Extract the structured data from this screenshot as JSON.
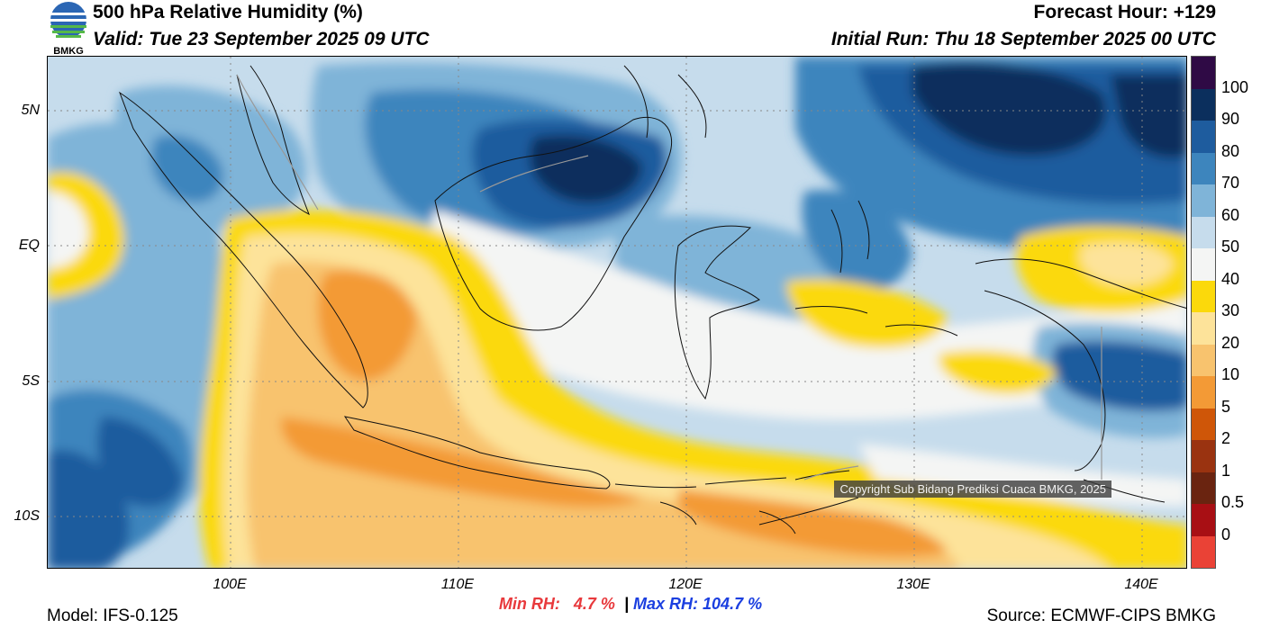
{
  "header": {
    "title": "500 hPa Relative Humidity (%)",
    "valid": "Valid: Tue 23 September 2025 09 UTC",
    "forecast_hour": "Forecast Hour: +129",
    "initial_run": "Initial Run: Thu 18 September 2025 00 UTC",
    "logo_text": "BMKG"
  },
  "map": {
    "lat_labels": [
      "5N",
      "EQ",
      "5S",
      "10S"
    ],
    "lon_labels": [
      "100E",
      "110E",
      "120E",
      "130E",
      "140E"
    ],
    "extent": {
      "lon_min": 92,
      "lon_max": 142,
      "lat_min": -12,
      "lat_max": 7
    }
  },
  "stats": {
    "min_label": "Min RH:",
    "min_value": "4.7 %",
    "separator": "|",
    "max_label": "Max RH:",
    "max_value": "104.7 %"
  },
  "footer": {
    "model": "Model: IFS-0.125",
    "source": "Source: ECMWF-CIPS BMKG",
    "copyright": "Copyright Sub Bidang Prediksi Cuaca BMKG, 2025"
  },
  "colorbar": {
    "labels": [
      "100",
      "90",
      "80",
      "70",
      "60",
      "50",
      "40",
      "30",
      "20",
      "10",
      "5",
      "2",
      "1",
      "0.5",
      "0"
    ],
    "colors": [
      "#2f0a45",
      "#0b2f5d",
      "#1e5c9e",
      "#3d85bd",
      "#7fb4d8",
      "#c6dcec",
      "#f4f5f4",
      "#fbd90b",
      "#fde39a",
      "#f8c36e",
      "#f39a36",
      "#cf5608",
      "#9a3310",
      "#6a2410",
      "#a80f14",
      "#ea4236"
    ]
  }
}
